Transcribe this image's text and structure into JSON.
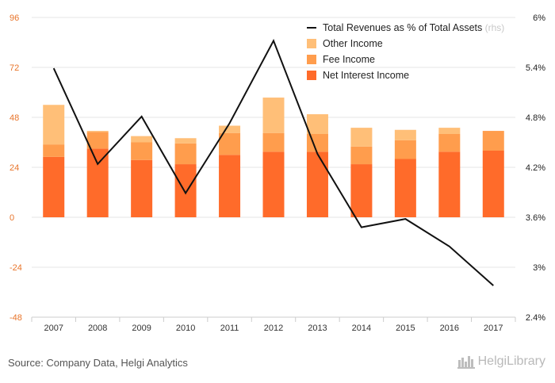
{
  "chart_data": {
    "type": "bar",
    "categories": [
      "2007",
      "2008",
      "2009",
      "2010",
      "2011",
      "2012",
      "2013",
      "2014",
      "2015",
      "2016",
      "2017"
    ],
    "series": [
      {
        "name": "Net Interest Income",
        "kind": "bar",
        "axis": "left",
        "color": "#ff6b2a",
        "values": [
          29,
          33,
          27.5,
          25.5,
          30,
          31.5,
          31.5,
          25.5,
          28,
          31.5,
          32
        ]
      },
      {
        "name": "Fee Income",
        "kind": "bar",
        "axis": "left",
        "color": "#ff9d4d",
        "values": [
          6,
          8,
          8.5,
          10,
          10.5,
          9,
          8.5,
          8.5,
          9,
          8.5,
          9.5
        ]
      },
      {
        "name": "Other Income",
        "kind": "bar",
        "axis": "left",
        "color": "#ffbf78",
        "values": [
          19,
          0.5,
          3,
          2.5,
          3.5,
          17,
          9.5,
          9,
          5,
          3,
          0
        ]
      },
      {
        "name": "Total Revenues as % of Total Assets",
        "name_suffix": "(rhs)",
        "kind": "line",
        "axis": "right",
        "color": "#111111",
        "values": [
          5.39,
          4.24,
          4.81,
          3.89,
          4.73,
          5.72,
          4.36,
          3.48,
          3.58,
          3.25,
          2.78
        ]
      }
    ],
    "left_axis": {
      "min": -48,
      "max": 96,
      "ticks": [
        "-48",
        "-24",
        "0",
        "24",
        "48",
        "72",
        "96"
      ],
      "tick_values": [
        -48,
        -24,
        0,
        24,
        48,
        72,
        96
      ],
      "color": "#e8742a"
    },
    "right_axis": {
      "min": 2.4,
      "max": 6.0,
      "ticks": [
        "2.4%",
        "3%",
        "3.6%",
        "4.2%",
        "4.8%",
        "5.4%",
        "6%"
      ],
      "tick_values": [
        2.4,
        3.0,
        3.6,
        4.2,
        4.8,
        5.4,
        6.0
      ]
    },
    "legend_order": [
      "Total Revenues as % of Total Assets",
      "Other Income",
      "Fee Income",
      "Net Interest Income"
    ],
    "legend_position": "top-right",
    "grid": "horizontal"
  },
  "footer": {
    "source": "Source: Company Data, Helgi Analytics",
    "brand": "HelgiLibrary"
  }
}
